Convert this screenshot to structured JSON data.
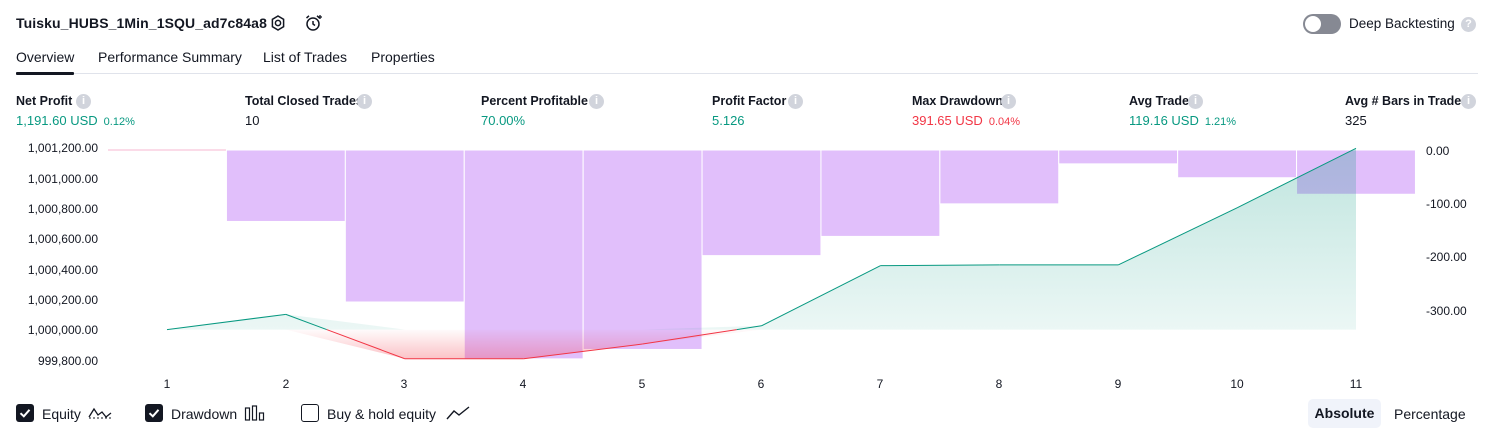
{
  "header": {
    "strategy_name": "Tuisku_HUBS_1Min_1SQU_ad7c84a8",
    "icons": [
      "gear-icon",
      "alarm-clock-icon"
    ],
    "deep_backtesting_label": "Deep Backtesting",
    "deep_backtesting_on": false
  },
  "tabs": [
    {
      "label": "Overview",
      "active": true
    },
    {
      "label": "Performance Summary",
      "active": false
    },
    {
      "label": "List of Trades",
      "active": false
    },
    {
      "label": "Properties",
      "active": false
    }
  ],
  "stats": [
    {
      "label": "Net Profit",
      "value": "1,191.60 USD",
      "pct": "0.12%",
      "color": "#089981"
    },
    {
      "label": "Total Closed Trades",
      "value": "10",
      "pct": "",
      "color": "#131722"
    },
    {
      "label": "Percent Profitable",
      "value": "70.00%",
      "pct": "",
      "color": "#089981"
    },
    {
      "label": "Profit Factor",
      "value": "5.126",
      "pct": "",
      "color": "#089981"
    },
    {
      "label": "Max Drawdown",
      "value": "391.65 USD",
      "pct": "0.04%",
      "color": "#f23645"
    },
    {
      "label": "Avg Trade",
      "value": "119.16 USD",
      "pct": "1.21%",
      "color": "#089981"
    },
    {
      "label": "Avg # Bars in Trades",
      "value": "325",
      "pct": "",
      "color": "#131722"
    }
  ],
  "chart_data": {
    "type": "line",
    "x": [
      1,
      2,
      3,
      4,
      5,
      6,
      7,
      8,
      9,
      10,
      11
    ],
    "y_left_ticks": [
      "1,001,200.00",
      "1,001,000.00",
      "1,000,800.00",
      "1,000,600.00",
      "1,000,400.00",
      "1,000,200.00",
      "1,000,000.00",
      "999,800.00"
    ],
    "y_right_ticks": [
      "0.00",
      "-100.00",
      "-200.00",
      "-300.00"
    ],
    "ylim_left": [
      999780,
      1001210
    ],
    "ylim_right": [
      -391.65,
      0
    ],
    "series": [
      {
        "name": "Equity",
        "axis": "left",
        "color": "#089981",
        "values": [
          1000000,
          1000100,
          999808.35,
          999808.35,
          999905,
          1000025,
          1000420,
          1000425,
          1000425,
          1000800,
          1001191.6
        ]
      },
      {
        "name": "Drawdown",
        "axis": "right",
        "type": "bar",
        "color": "#e1bffb",
        "values": [
          0,
          -134,
          -285,
          -391.65,
          -374,
          -198,
          -162,
          -101,
          -26,
          -52,
          -83
        ]
      }
    ],
    "equity_baseline": 1000000,
    "grid": false
  },
  "legend": [
    {
      "label": "Equity",
      "checked": true,
      "icon": "equity-line-icon"
    },
    {
      "label": "Drawdown",
      "checked": true,
      "icon": "drawdown-bars-icon"
    },
    {
      "label": "Buy & hold equity",
      "checked": false,
      "icon": "buy-hold-line-icon"
    }
  ],
  "view_modes": {
    "absolute": "Absolute",
    "percentage": "Percentage",
    "active": "Absolute"
  }
}
